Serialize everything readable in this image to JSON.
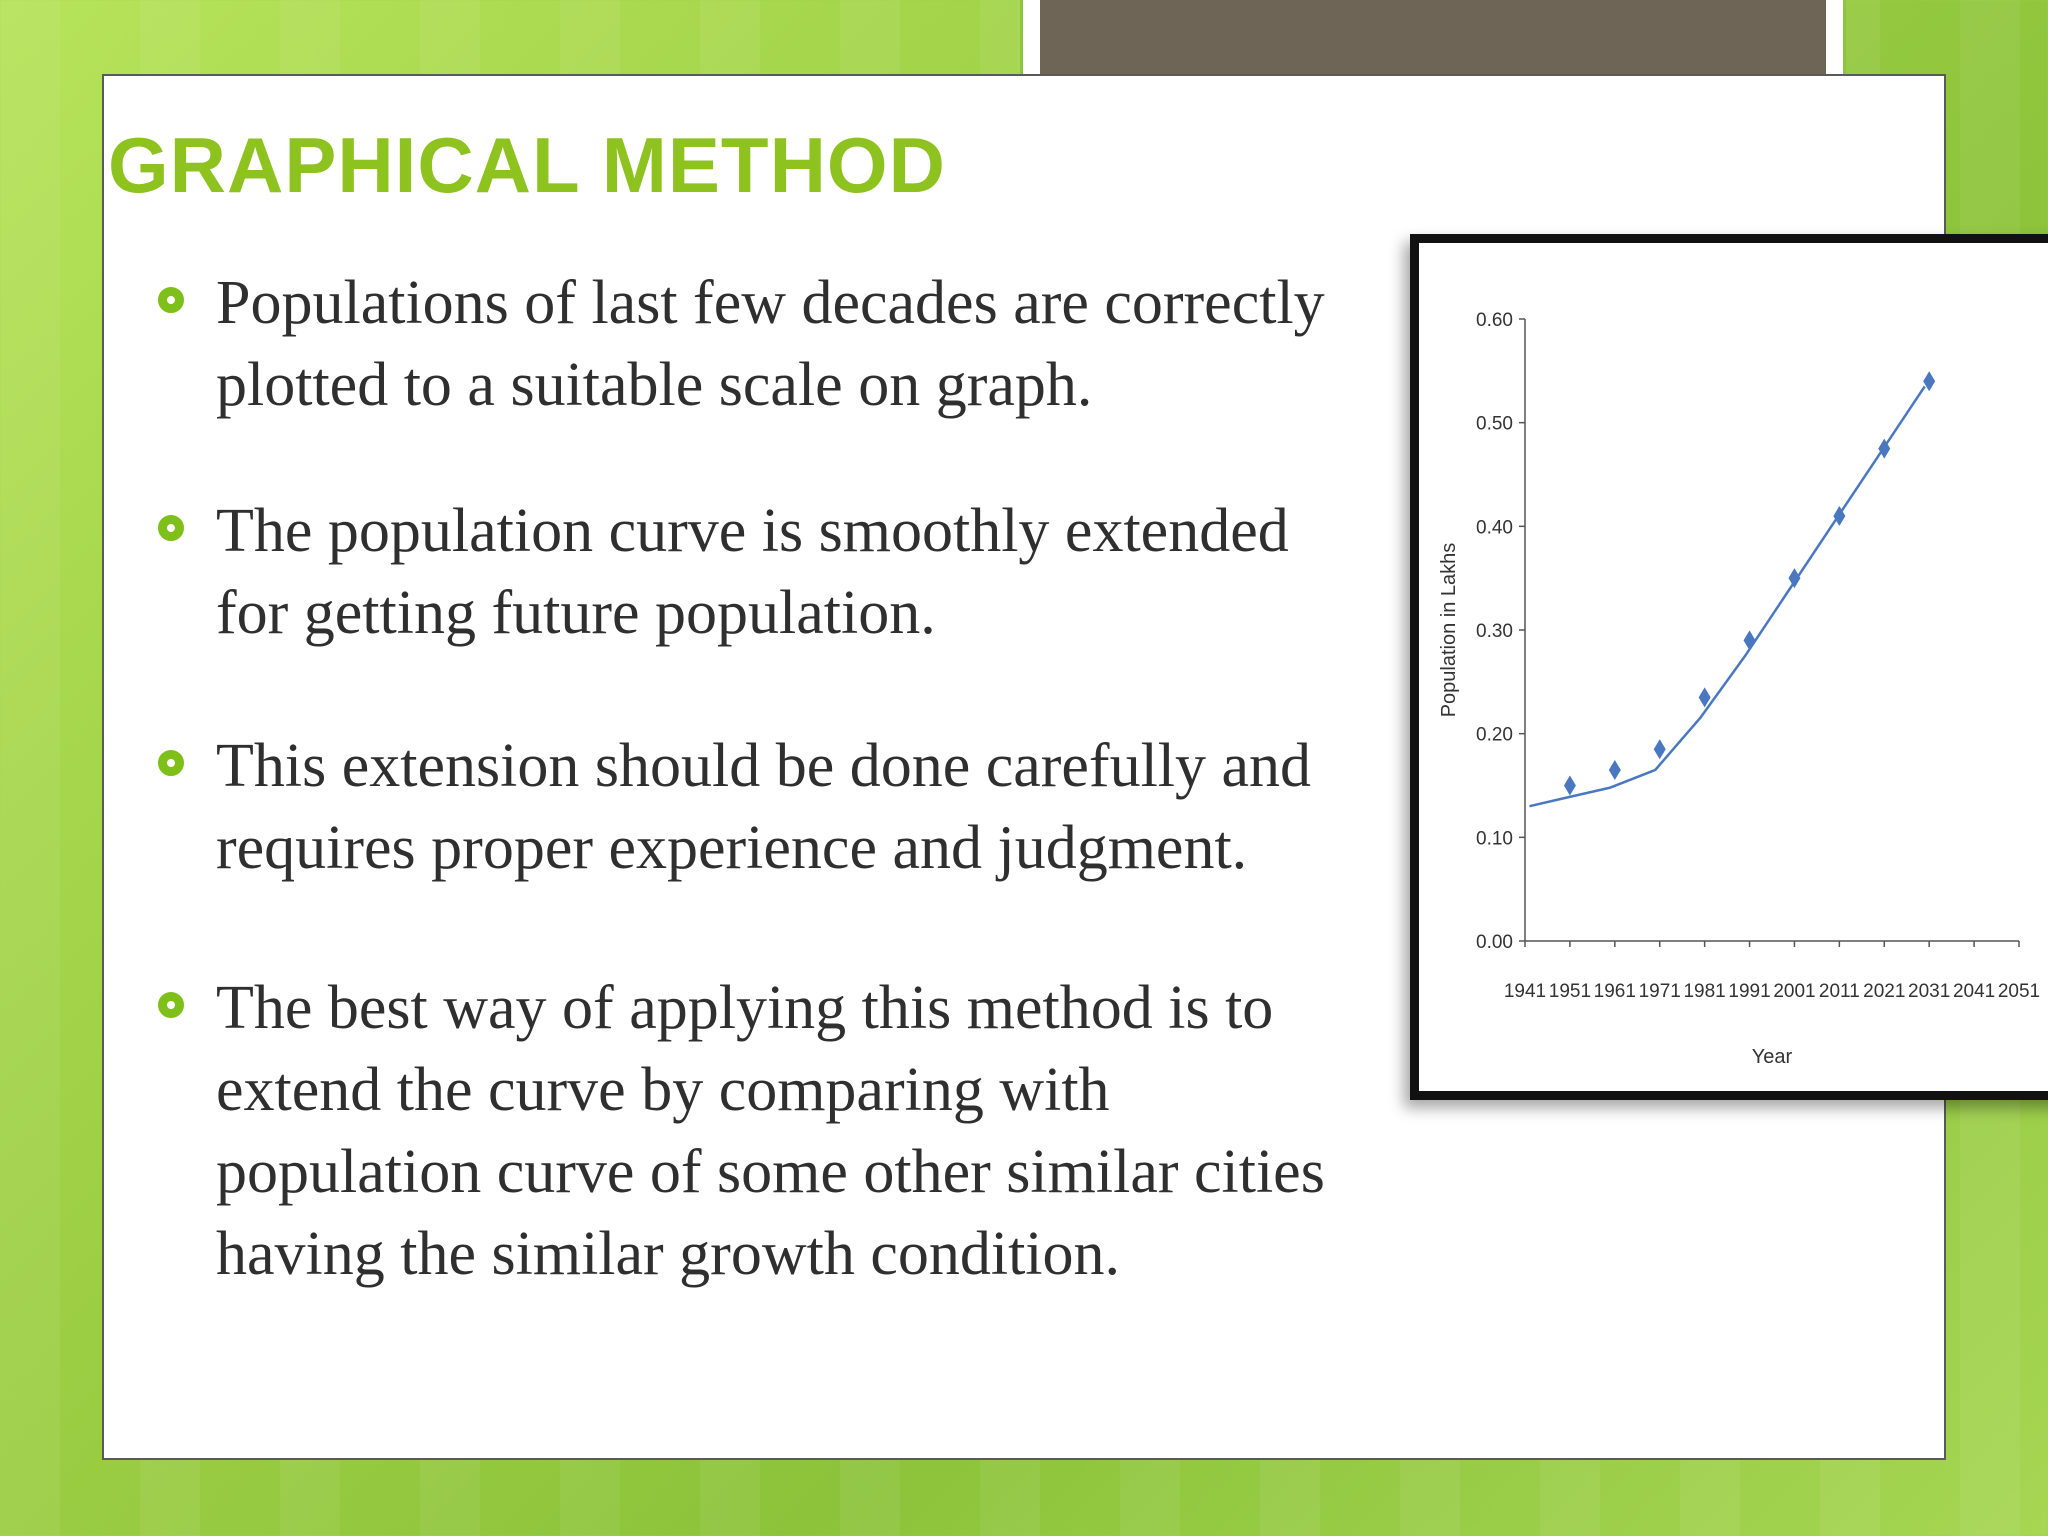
{
  "slide": {
    "title": "GRAPHICAL METHOD",
    "bullets": [
      {
        "lines": [
          "Populations of last few decades are correctly",
          "plotted to a suitable scale on graph."
        ]
      },
      {
        "lines": [
          " The population curve is smoothly extended",
          "for getting future population."
        ]
      },
      {
        "lines": [
          "This extension should be done carefully and",
          "requires proper experience and judgment."
        ]
      },
      {
        "lines": [
          "The best way of applying this method is to",
          "extend the curve by comparing with",
          "population curve of some other similar cities",
          "having the similar growth condition."
        ]
      }
    ]
  },
  "colors": {
    "accent": "#8dc21f",
    "bullet": "#7fbf1a",
    "text": "#2f2f2f",
    "series": "#4a78c0"
  },
  "chart_data": {
    "type": "scatter",
    "title": "",
    "xlabel": "Year",
    "ylabel": "Population in Lakhs",
    "xlim": [
      1941,
      2051
    ],
    "ylim": [
      0.0,
      0.6
    ],
    "x_ticks": [
      "1941",
      "1951",
      "1961",
      "1971",
      "1981",
      "1991",
      "2001",
      "2011",
      "2021",
      "2031",
      "2041",
      "2051"
    ],
    "y_ticks": [
      "0.00",
      "0.10",
      "0.20",
      "0.30",
      "0.40",
      "0.50",
      "0.60"
    ],
    "grid": false,
    "legend": "none",
    "series": [
      {
        "marker": "diamond",
        "x": [
          1951,
          1961,
          1971,
          1981,
          1991,
          2001,
          2011,
          2021,
          2031
        ],
        "y": [
          0.15,
          0.165,
          0.185,
          0.235,
          0.29,
          0.35,
          0.41,
          0.475,
          0.54
        ]
      }
    ],
    "trendline": {
      "x": [
        1942,
        1950,
        1960,
        1970,
        1980,
        1990,
        2000,
        2010,
        2020,
        2030
      ],
      "y": [
        0.13,
        0.138,
        0.148,
        0.165,
        0.215,
        0.275,
        0.34,
        0.405,
        0.47,
        0.535
      ]
    }
  }
}
